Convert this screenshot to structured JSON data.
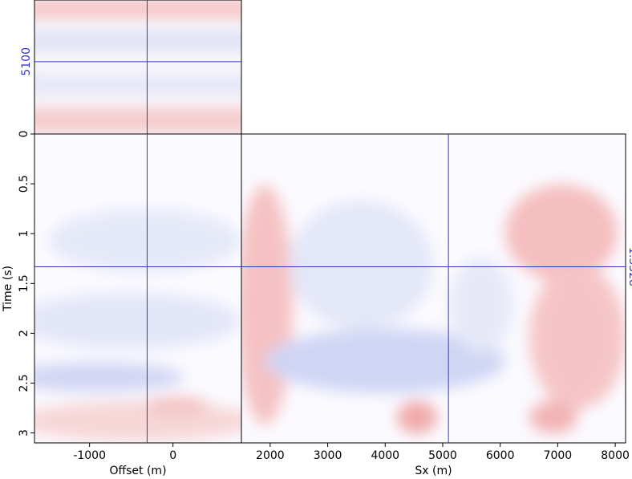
{
  "chart_data": [
    {
      "type": "heatmap",
      "xlim": [
        -1660,
        820
      ],
      "ylim": [
        4020,
        6020
      ],
      "crosshair": {
        "x": -310,
        "y": 5100
      },
      "crosshair_color": "#3535d0"
    },
    {
      "type": "heatmap",
      "xlabel": "Offset (m)",
      "ylabel": "Time (s)",
      "xlim": [
        -1660,
        820
      ],
      "xticks": [
        -1000,
        0
      ],
      "ylim": [
        3.1,
        0
      ],
      "yticks": [
        0,
        0.5,
        1,
        1.5,
        2,
        2.5,
        3
      ],
      "crosshair": {
        "x": -310,
        "y": 1.3328
      },
      "crosshair_color": "#3535d0"
    },
    {
      "type": "heatmap",
      "xlabel": "Sx (m)",
      "xlim": [
        1500,
        8180
      ],
      "xticks": [
        2000,
        3000,
        4000,
        5000,
        6000,
        7000,
        8000
      ],
      "ylim": [
        3.1,
        0
      ],
      "crosshair": {
        "x": 5100,
        "y": 1.3328
      },
      "crosshair_color": "#3535d0"
    }
  ]
}
